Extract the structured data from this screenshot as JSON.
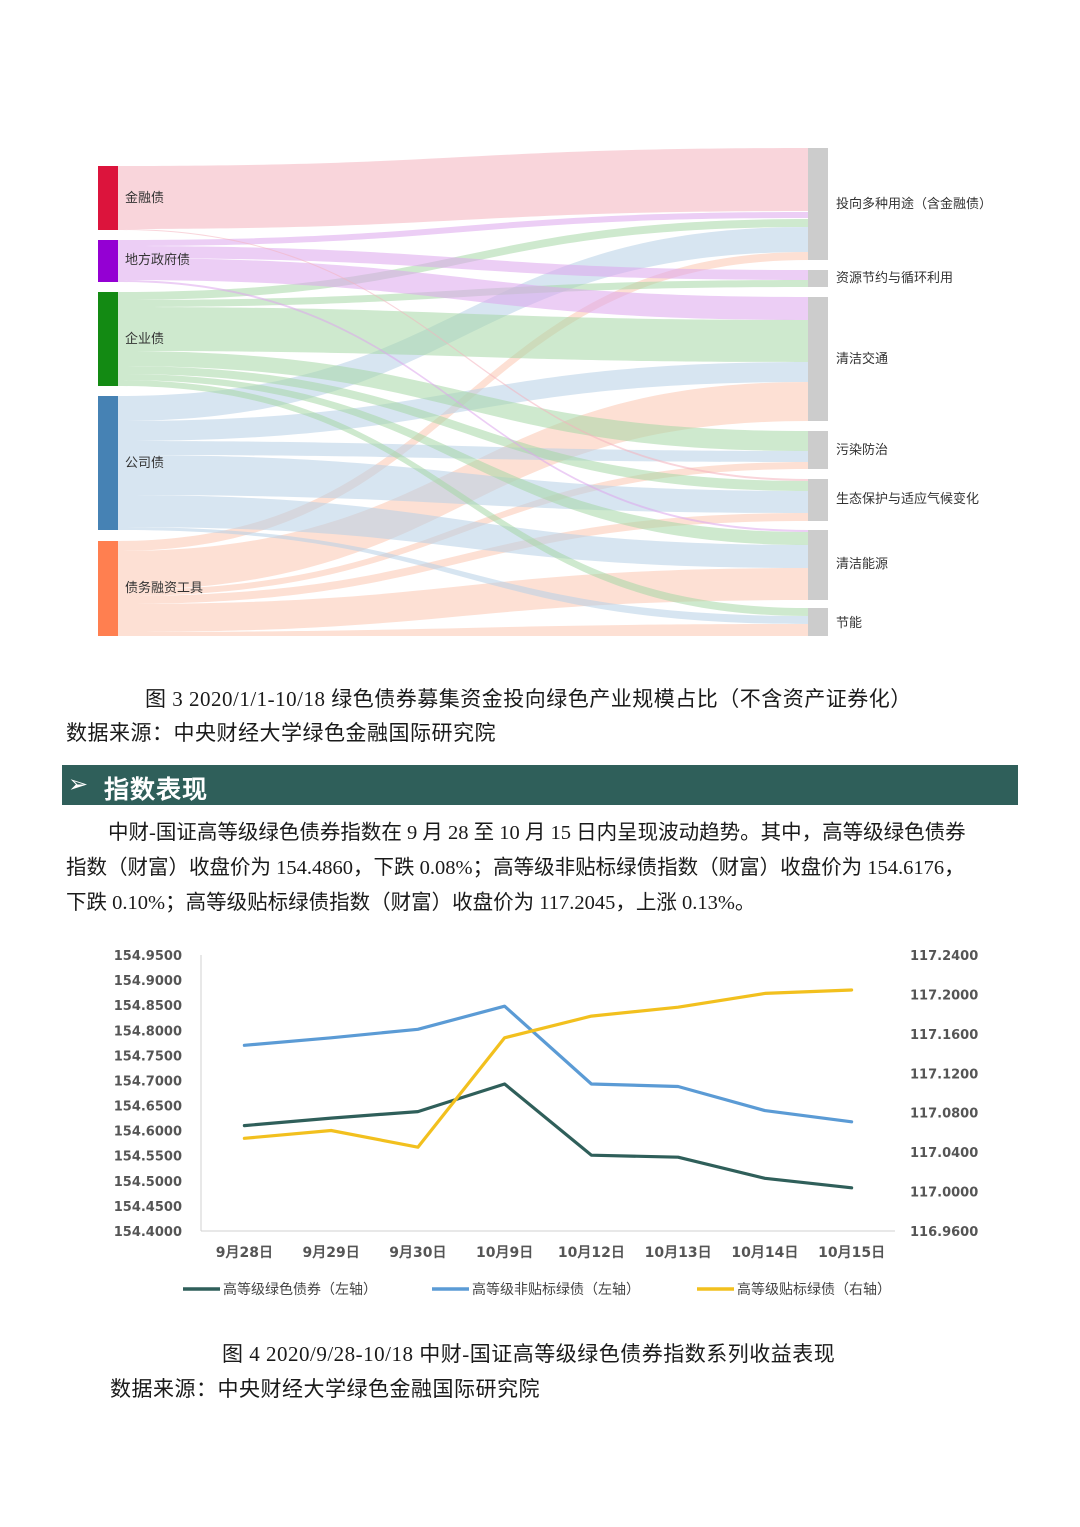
{
  "sankey": {
    "sources": [
      {
        "label": "金融债",
        "color": "#dc143c"
      },
      {
        "label": "地方政府债",
        "color": "#9400d3"
      },
      {
        "label": "企业债",
        "color": "#138a13"
      },
      {
        "label": "公司债",
        "color": "#4682b4"
      },
      {
        "label": "债务融资工具",
        "color": "#ff7f50"
      }
    ],
    "targets": [
      "投向多种用途（含金融债）",
      "资源节约与循环利用",
      "清洁交通",
      "污染防治",
      "生态保护与适应气候变化",
      "清洁能源",
      "节能"
    ],
    "target_color": "#cccccc"
  },
  "figure3": {
    "caption": "图  3    2020/1/1-10/18 绿色债券募集资金投向绿色产业规模占比（不含资产证券化）",
    "source": "数据来源：中央财经大学绿色金融国际研究院"
  },
  "section": {
    "arrow": "➢",
    "title": "指数表现"
  },
  "paragraph": {
    "line1": "中财-国证高等级绿色债券指数在 9 月 28 至 10 月 15 日内呈现波动趋势。其中，高等级绿色债券",
    "line2": "指数（财富）收盘价为 154.4860，下跌 0.08%；高等级非贴标绿债指数（财富）收盘价为 154.6176，",
    "line3": "下跌 0.10%；高等级贴标绿债指数（财富）收盘价为 117.2045，上涨 0.13%。"
  },
  "chart_data": {
    "type": "line",
    "categories": [
      "9月28日",
      "9月29日",
      "9月30日",
      "10月9日",
      "10月12日",
      "10月13日",
      "10月14日",
      "10月15日"
    ],
    "y_left": {
      "ylim": [
        154.4,
        154.95
      ],
      "ticks": [
        "154.9500",
        "154.9000",
        "154.8500",
        "154.8000",
        "154.7500",
        "154.7000",
        "154.6500",
        "154.6000",
        "154.5500",
        "154.5000",
        "154.4500",
        "154.4000"
      ]
    },
    "y_right": {
      "ylim": [
        116.96,
        117.24
      ],
      "ticks": [
        "117.2400",
        "117.2000",
        "117.1600",
        "117.1200",
        "117.0800",
        "117.0400",
        "117.0000",
        "116.9600"
      ]
    },
    "series": [
      {
        "name": "高等级绿色债券（左轴）",
        "axis": "left",
        "color": "#2f5f5a",
        "values": [
          154.61,
          154.625,
          154.638,
          154.693,
          154.551,
          154.547,
          154.505,
          154.486
        ]
      },
      {
        "name": "高等级非贴标绿债（左轴）",
        "axis": "left",
        "color": "#5b9bd5",
        "values": [
          154.77,
          154.785,
          154.802,
          154.848,
          154.693,
          154.688,
          154.64,
          154.6176
        ]
      },
      {
        "name": "高等级贴标绿债（右轴）",
        "axis": "right",
        "color": "#f2c01e",
        "values": [
          117.054,
          117.062,
          117.045,
          117.156,
          117.178,
          117.187,
          117.201,
          117.2045
        ]
      }
    ],
    "grid": false,
    "legend": "bottom"
  },
  "figure4": {
    "caption": "图  4    2020/9/28-10/18 中财-国证高等级绿色债券指数系列收益表现",
    "source": "数据来源：中央财经大学绿色金融国际研究院"
  }
}
